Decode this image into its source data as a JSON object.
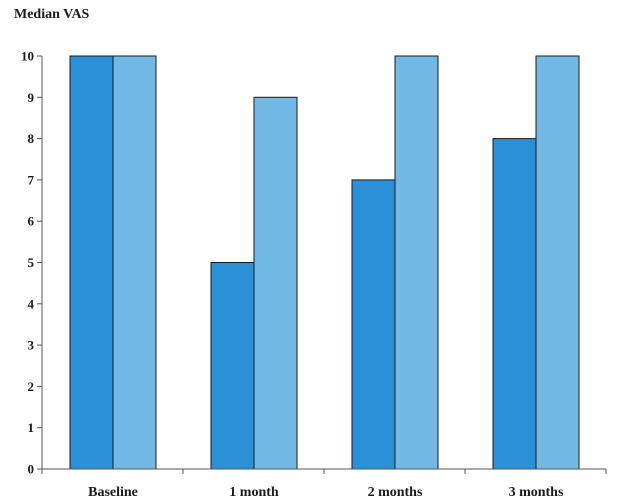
{
  "chart_data": {
    "type": "bar",
    "title": "",
    "xlabel": "",
    "ylabel": "Median VAS",
    "ylim": [
      0,
      10
    ],
    "yticks": [
      0,
      1,
      2,
      3,
      4,
      5,
      6,
      7,
      8,
      9,
      10
    ],
    "categories": [
      "Baseline",
      "1 month",
      "2 months",
      "3 months"
    ],
    "series": [
      {
        "values": [
          10,
          5,
          7,
          8
        ],
        "color": "#2a90d8"
      },
      {
        "values": [
          10,
          9,
          10,
          10
        ],
        "color": "#72b9e6"
      }
    ],
    "grid": false,
    "legend": "none"
  }
}
